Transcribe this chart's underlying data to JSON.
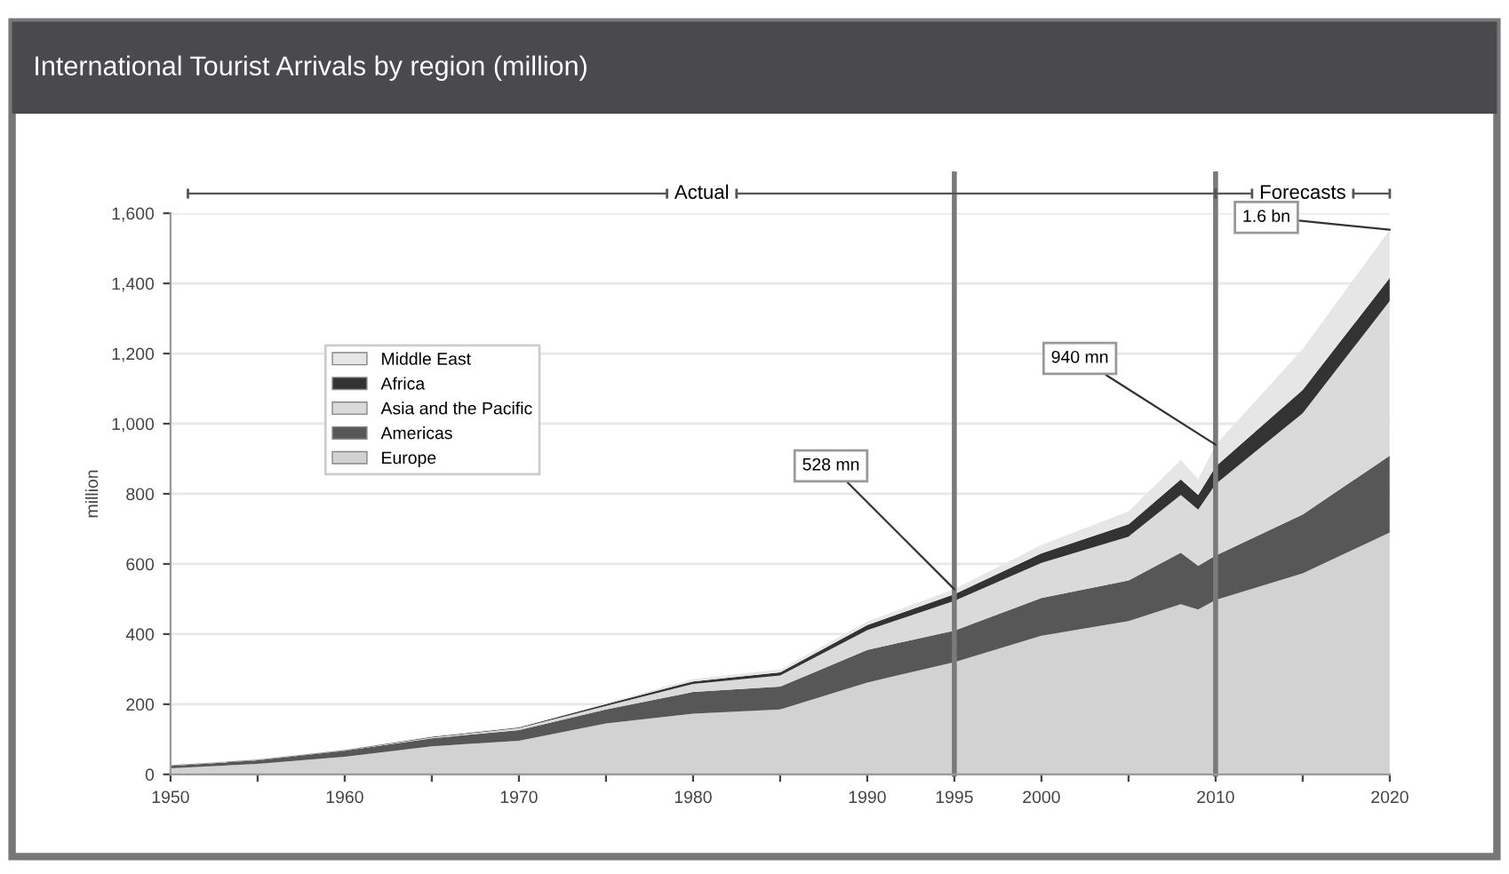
{
  "chart_data": {
    "type": "area",
    "stacked": true,
    "title": "International Tourist Arrivals by region (million)",
    "ylabel": "million",
    "x": [
      1950,
      1955,
      1960,
      1965,
      1970,
      1975,
      1980,
      1985,
      1990,
      1995,
      2000,
      2005,
      2008,
      2009,
      2010,
      2015,
      2020
    ],
    "series": [
      {
        "name": "Europe",
        "color": "#d2d2d2",
        "values": [
          17,
          30,
          50,
          80,
          96,
          145,
          173,
          185,
          262,
          320,
          395,
          437,
          485,
          470,
          497,
          573,
          690
        ]
      },
      {
        "name": "Americas",
        "color": "#575757",
        "values": [
          7,
          10,
          17,
          23,
          30,
          40,
          62,
          65,
          93,
          90,
          108,
          116,
          147,
          125,
          127,
          168,
          219
        ]
      },
      {
        "name": "Asia and the Pacific",
        "color": "#dadada",
        "values": [
          1,
          1,
          1,
          2,
          6,
          10,
          23,
          32,
          56,
          85,
          100,
          125,
          165,
          160,
          204,
          289,
          441
        ]
      },
      {
        "name": "Africa",
        "color": "#333333",
        "values": [
          1,
          1,
          1,
          2,
          2,
          5,
          7,
          9,
          15,
          19,
          27,
          35,
          44,
          42,
          50,
          66,
          66
        ]
      },
      {
        "name": "Middle East",
        "color": "#e6e6e6",
        "values": [
          1,
          1,
          1,
          2,
          2,
          3,
          7,
          8,
          10,
          14,
          24,
          37,
          55,
          45,
          62,
          117,
          137
        ]
      }
    ],
    "xlim": [
      1950,
      2020
    ],
    "xticks": [
      1950,
      {
        "value": 1955,
        "label": null
      },
      1960,
      {
        "value": 1965,
        "label": null
      },
      1970,
      {
        "value": 1975,
        "label": null
      },
      1980,
      {
        "value": 1985,
        "label": null
      },
      1990,
      1995,
      2000,
      {
        "value": 2005,
        "label": null
      },
      2010,
      {
        "value": 2015,
        "label": null
      },
      2020
    ],
    "ylim": [
      0,
      1600
    ],
    "yticks": [
      0,
      200,
      400,
      600,
      800,
      {
        "value": 1000,
        "label": "1,000"
      },
      {
        "value": 1200,
        "label": "1,200"
      },
      {
        "value": 1400,
        "label": "1,400"
      },
      {
        "value": 1600,
        "label": "1,600"
      }
    ],
    "grid": "y",
    "legend": "top left",
    "ref_lines": [
      {
        "axis": "x",
        "value": 1995,
        "color": "#7a7a7a"
      },
      {
        "axis": "x",
        "value": 2010,
        "color": "#7a7a7a"
      }
    ],
    "annotations": [
      "Actual",
      "Forecasts",
      {
        "text": "528 mn",
        "x": 1995,
        "y": 528
      },
      {
        "text": "940 mn",
        "x": 2010,
        "y": 940
      },
      {
        "text": "1.6 bn",
        "x": 2020,
        "y": 1553
      }
    ]
  }
}
